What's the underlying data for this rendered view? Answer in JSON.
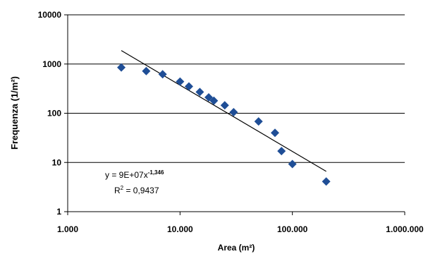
{
  "chart_data": {
    "type": "scatter",
    "title": "",
    "xlabel": "Area (m²)",
    "ylabel": "Frequenza (1/m²)",
    "x_scale": "log",
    "y_scale": "log",
    "xlim": [
      1000,
      1000000
    ],
    "ylim": [
      1,
      10000
    ],
    "x_ticks": [
      1000,
      10000,
      100000,
      1000000
    ],
    "x_tick_labels": [
      "1.000",
      "10.000",
      "100.000",
      "1.000.000"
    ],
    "y_ticks": [
      1,
      10,
      100,
      1000,
      10000
    ],
    "y_tick_labels": [
      "1",
      "10",
      "100",
      "1000",
      "10000"
    ],
    "grid": "horizontal",
    "legend": "none",
    "marker_color": "#1f4e96",
    "trendline_color": "#000000",
    "series": [
      {
        "x": [
          3000,
          5000,
          7000,
          10000,
          12000,
          15000,
          18000,
          20000,
          25000,
          30000,
          50000,
          70000,
          80000,
          100000,
          200000
        ],
        "y": [
          850,
          720,
          620,
          440,
          350,
          270,
          210,
          180,
          145,
          105,
          68,
          40,
          17,
          9.3,
          4.1
        ]
      }
    ],
    "trendline": {
      "type": "power",
      "x_range": [
        3000,
        200000
      ],
      "equation": {
        "prefix": "y = 9E+07x",
        "exponent": "-1,346"
      },
      "r2": {
        "prefix": "R",
        "sup": "2",
        "value": " = 0,9437"
      }
    }
  }
}
